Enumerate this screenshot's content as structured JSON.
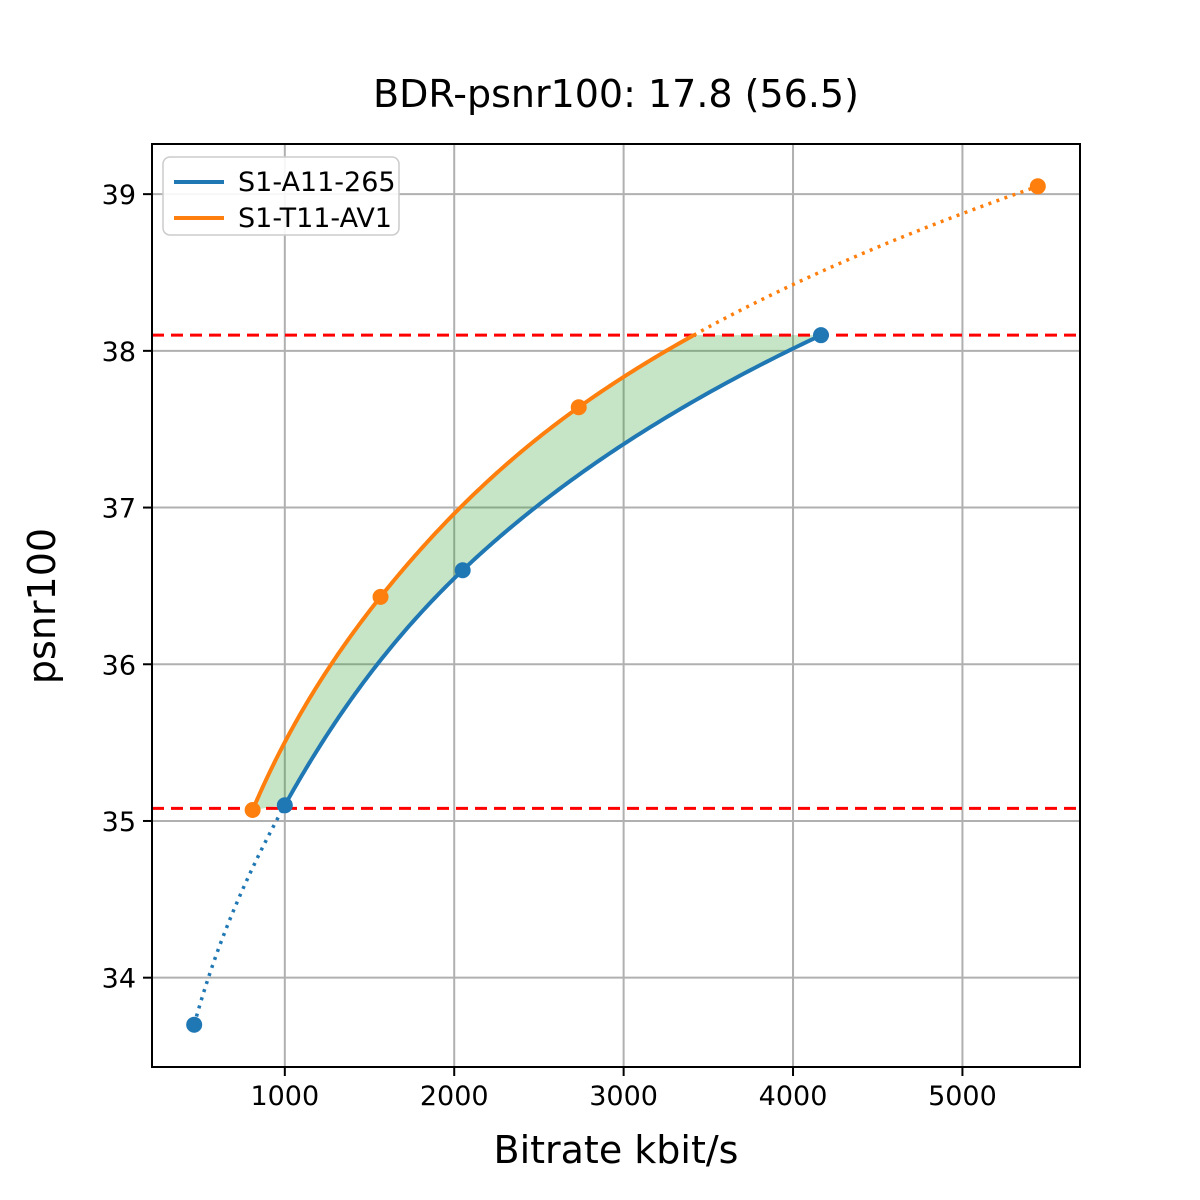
{
  "chart_data": {
    "type": "line",
    "title": "BDR-psnr100: 17.8 (56.5)",
    "xlabel": "Bitrate kbit/s",
    "ylabel": "psnr100",
    "xlim": [
      216,
      5694
    ],
    "ylim": [
      33.43,
      39.32
    ],
    "xticks": [
      1000,
      2000,
      3000,
      4000,
      5000
    ],
    "yticks": [
      34,
      35,
      36,
      37,
      38,
      39
    ],
    "grid": true,
    "grid_color": "#b0b0b0",
    "legend_position": "upper left",
    "series": [
      {
        "name": "S1-A11-265",
        "color": "#1f77b4",
        "x": [
          465,
          1000,
          2050,
          4165
        ],
        "y": [
          33.7,
          35.1,
          36.6,
          38.1
        ],
        "dotted_segment": "below first overlap point (x < 1000)"
      },
      {
        "name": "S1-T11-AV1",
        "color": "#ff7f0e",
        "x": [
          810,
          1565,
          2735,
          5445
        ],
        "y": [
          35.07,
          36.43,
          37.64,
          39.05
        ],
        "dotted_segment": "above overlap (y > 38.10)"
      }
    ],
    "hlines": {
      "values": [
        35.08,
        38.1
      ],
      "color": "#ff0000",
      "style": "dashed"
    },
    "shaded_region": {
      "description": "area between curves within overlap interval",
      "fill_color": "#2ca02c",
      "fill_opacity": 0.27,
      "y_range": [
        35.08,
        38.1
      ]
    }
  }
}
